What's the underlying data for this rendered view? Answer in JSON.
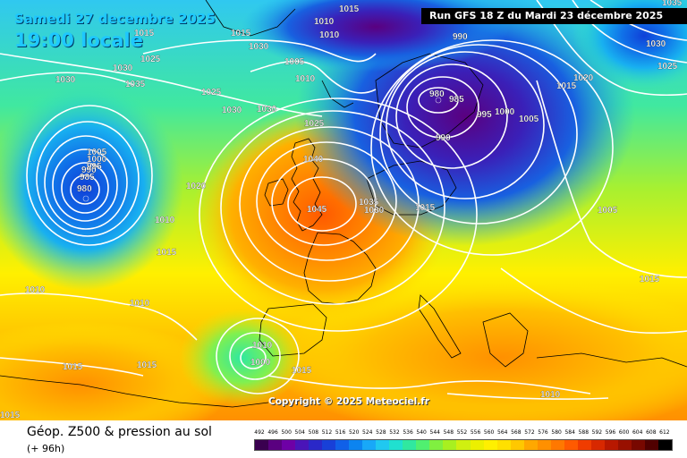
{
  "header": {
    "date": "Samedi 27 decembre 2025",
    "time": "19:00 locale",
    "run": "Run GFS 18 Z du Mardi 23 décembre 2025"
  },
  "copyright": "Copyright © 2025 Meteociel.fr",
  "footer": {
    "title": "Géop. Z500 & pression au sol",
    "subtitle": "(+ 96h)"
  },
  "legend": {
    "values": [
      "492",
      "496",
      "500",
      "504",
      "508",
      "512",
      "516",
      "520",
      "524",
      "528",
      "532",
      "536",
      "540",
      "544",
      "548",
      "552",
      "556",
      "560",
      "564",
      "568",
      "572",
      "576",
      "580",
      "584",
      "588",
      "592",
      "596",
      "600",
      "604",
      "608",
      "612"
    ],
    "colors": [
      "#3a0050",
      "#5a0080",
      "#6e00a6",
      "#4a14b8",
      "#2a28c8",
      "#1840d8",
      "#1060e8",
      "#0c84f0",
      "#18a8f8",
      "#20c8f0",
      "#20e0d0",
      "#30e8a0",
      "#50f070",
      "#80f040",
      "#a8f020",
      "#d0f010",
      "#ecf000",
      "#fff000",
      "#ffe000",
      "#ffc800",
      "#ffa800",
      "#ff9000",
      "#ff7800",
      "#ff5a00",
      "#f03c00",
      "#d82800",
      "#b81800",
      "#981000",
      "#780800",
      "#500000",
      "#000000"
    ]
  },
  "isobars": [
    {
      "label": "1015",
      "placement": "top"
    },
    {
      "label": "1010",
      "placement": "top"
    },
    {
      "label": "1010",
      "placement": "top"
    },
    {
      "label": "1035",
      "placement": "top-right"
    },
    {
      "label": "990",
      "placement": "top"
    },
    {
      "label": "1030",
      "placement": "top-right"
    },
    {
      "label": "1025",
      "placement": "top-right"
    },
    {
      "label": "1015",
      "placement": "top-left"
    },
    {
      "label": "1030",
      "placement": "top-left"
    },
    {
      "label": "1025",
      "placement": "top-left"
    },
    {
      "label": "1030",
      "placement": "top-left"
    },
    {
      "label": "1035",
      "placement": "top-left"
    },
    {
      "label": "1030",
      "placement": "left"
    },
    {
      "label": "1015",
      "placement": "left"
    },
    {
      "label": "1005",
      "placement": "top"
    },
    {
      "label": "1010",
      "placement": "top"
    },
    {
      "label": "1025",
      "placement": "top"
    },
    {
      "label": "1030",
      "placement": "top"
    },
    {
      "label": "1030",
      "placement": "top"
    },
    {
      "label": "1025",
      "placement": "center"
    },
    {
      "label": "1020",
      "placement": "right"
    },
    {
      "label": "1015",
      "placement": "right"
    },
    {
      "label": "980",
      "placement": "top"
    },
    {
      "label": "985",
      "placement": "top"
    },
    {
      "label": "995",
      "placement": "top"
    },
    {
      "label": "1000",
      "placement": "top"
    },
    {
      "label": "1005",
      "placement": "top"
    },
    {
      "label": "990",
      "placement": "top"
    },
    {
      "label": "1005",
      "placement": "left"
    },
    {
      "label": "1000",
      "placement": "left"
    },
    {
      "label": "995",
      "placement": "left"
    },
    {
      "label": "990",
      "placement": "left"
    },
    {
      "label": "985",
      "placement": "left"
    },
    {
      "label": "980",
      "placement": "left"
    },
    {
      "label": "1040",
      "placement": "center"
    },
    {
      "label": "1045",
      "placement": "center"
    },
    {
      "label": "1020",
      "placement": "center"
    },
    {
      "label": "1035",
      "placement": "center"
    },
    {
      "label": "1030",
      "placement": "center"
    },
    {
      "label": "1015",
      "placement": "center"
    },
    {
      "label": "1010",
      "placement": "left"
    },
    {
      "label": "1015",
      "placement": "left"
    },
    {
      "label": "1010",
      "placement": "left"
    },
    {
      "label": "1010",
      "placement": "left"
    },
    {
      "label": "1005",
      "placement": "right"
    },
    {
      "label": "1015",
      "placement": "right"
    },
    {
      "label": "1015",
      "placement": "bottom-left"
    },
    {
      "label": "1015",
      "placement": "bottom"
    },
    {
      "label": "1015",
      "placement": "bottom"
    },
    {
      "label": "1010",
      "placement": "bottom-left"
    },
    {
      "label": "1000",
      "placement": "bottom-left"
    },
    {
      "label": "1010",
      "placement": "bottom-right"
    },
    {
      "label": "1015",
      "placement": "bottom-left"
    }
  ]
}
